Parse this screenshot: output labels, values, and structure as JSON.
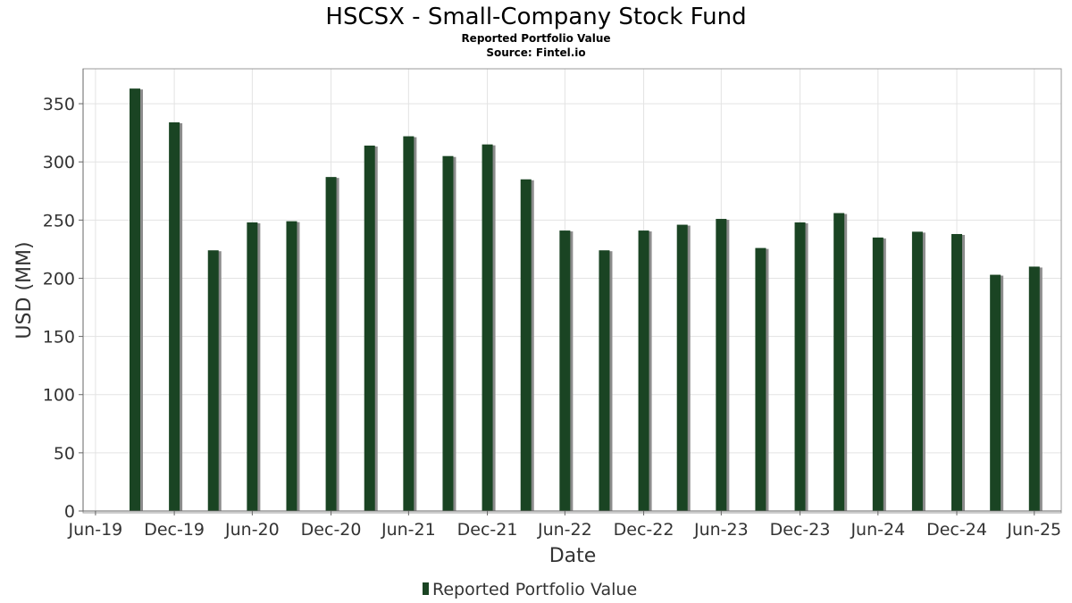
{
  "chart_data": {
    "type": "bar",
    "title": "HSCSX - Small-Company Stock Fund",
    "subtitle": "Reported Portfolio Value",
    "source": "Source: Fintel.io",
    "xlabel": "Date",
    "ylabel": "USD (MM)",
    "ylim": [
      0,
      380
    ],
    "yticks": [
      0,
      50,
      100,
      150,
      200,
      250,
      300,
      350
    ],
    "xlim": [
      "2019-06-01",
      "2025-09-01"
    ],
    "xticks": [
      {
        "date": "2019-06-30",
        "label": "Jun-19"
      },
      {
        "date": "2019-12-31",
        "label": "Dec-19"
      },
      {
        "date": "2020-06-30",
        "label": "Jun-20"
      },
      {
        "date": "2020-12-31",
        "label": "Dec-20"
      },
      {
        "date": "2021-06-30",
        "label": "Jun-21"
      },
      {
        "date": "2021-12-31",
        "label": "Dec-21"
      },
      {
        "date": "2022-06-30",
        "label": "Jun-22"
      },
      {
        "date": "2022-12-31",
        "label": "Dec-22"
      },
      {
        "date": "2023-06-30",
        "label": "Jun-23"
      },
      {
        "date": "2023-12-31",
        "label": "Dec-23"
      },
      {
        "date": "2024-06-30",
        "label": "Jun-24"
      },
      {
        "date": "2024-12-31",
        "label": "Dec-24"
      },
      {
        "date": "2025-06-30",
        "label": "Jun-25"
      }
    ],
    "grid": true,
    "legend_position": "bottom",
    "series": [
      {
        "name": "Reported Portfolio Value",
        "color": "#1a4423",
        "shadow_color": "#8c8c8c",
        "points": [
          {
            "x": "2019-09-30",
            "y": 363
          },
          {
            "x": "2019-12-31",
            "y": 334
          },
          {
            "x": "2020-03-31",
            "y": 224
          },
          {
            "x": "2020-06-30",
            "y": 248
          },
          {
            "x": "2020-09-30",
            "y": 249
          },
          {
            "x": "2020-12-31",
            "y": 287
          },
          {
            "x": "2021-03-31",
            "y": 314
          },
          {
            "x": "2021-06-30",
            "y": 322
          },
          {
            "x": "2021-09-30",
            "y": 305
          },
          {
            "x": "2021-12-31",
            "y": 315
          },
          {
            "x": "2022-03-31",
            "y": 285
          },
          {
            "x": "2022-06-30",
            "y": 241
          },
          {
            "x": "2022-09-30",
            "y": 224
          },
          {
            "x": "2022-12-31",
            "y": 241
          },
          {
            "x": "2023-03-31",
            "y": 246
          },
          {
            "x": "2023-06-30",
            "y": 251
          },
          {
            "x": "2023-09-30",
            "y": 226
          },
          {
            "x": "2023-12-31",
            "y": 248
          },
          {
            "x": "2024-03-31",
            "y": 256
          },
          {
            "x": "2024-06-30",
            "y": 235
          },
          {
            "x": "2024-09-30",
            "y": 240
          },
          {
            "x": "2024-12-31",
            "y": 238
          },
          {
            "x": "2025-03-31",
            "y": 203
          },
          {
            "x": "2025-06-30",
            "y": 210
          }
        ]
      }
    ]
  }
}
